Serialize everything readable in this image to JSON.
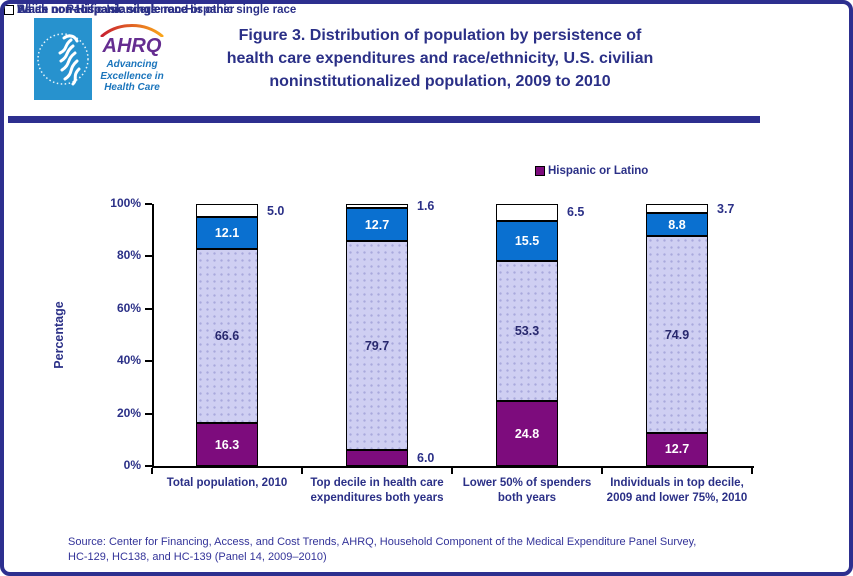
{
  "colors": {
    "border": "#2D2F8F",
    "navy_text": "#2B3087",
    "axis": "#000000",
    "source_text": "#333399",
    "hhs_blue": "#2792CE",
    "ahrq_purple": "#652D90",
    "ahrq_blue": "#1B75BC",
    "lavender_dot": "#A9A9DC"
  },
  "header": {
    "title": "Figure 3. Distribution of population by persistence of\nhealth care expenditures and race/ethnicity, U.S. civilian\nnoninstitutionalized population, 2009 to 2010",
    "logo": {
      "acronym": "AHRQ",
      "tagline": "Advancing\nExcellence in\nHealth Care"
    }
  },
  "chart_data": {
    "type": "bar",
    "stacked": true,
    "title": "Figure 3. Distribution of population by persistence of health care expenditures and race/ethnicity, U.S. civilian noninstitutionalized population, 2009 to 2010",
    "xlabel": "",
    "ylabel": "Percentage",
    "ylim": [
      0,
      100
    ],
    "y_tick_labels": [
      "0%",
      "20%",
      "40%",
      "60%",
      "80%",
      "100%"
    ],
    "grid": false,
    "legend_position": "top",
    "categories": [
      "Total population, 2010",
      "Top decile in health care\nexpenditures both years",
      "Lower 50% of spenders\nboth years",
      "Individuals in top decile,\n2009 and lower 75%, 2010"
    ],
    "series": [
      {
        "name": "Hispanic or Latino",
        "key": "hispanic-or-latino",
        "color": "#7D0C7D",
        "label_color": "#FFFFFF",
        "dotted": false,
        "values": [
          16.3,
          6.0,
          24.8,
          12.7
        ]
      },
      {
        "name": "White non-Hispanic single race or other",
        "key": "white-non-hispanic",
        "color": "#CFCFF2",
        "label_color": "#28286E",
        "dotted": true,
        "values": [
          66.6,
          79.7,
          53.3,
          74.9
        ]
      },
      {
        "name": "Black non-Hispanic single race",
        "key": "black-non-hispanic",
        "color": "#0A70D0",
        "label_color": "#FFFFFF",
        "dotted": false,
        "values": [
          12.1,
          12.7,
          15.5,
          8.8
        ]
      },
      {
        "name": "Asian or Pacific Islanders non-Hispanic single race",
        "key": "asian-pacific-islanders",
        "color": "#FFFFFF",
        "label_color": "#2B3087",
        "dotted": false,
        "values": [
          5.0,
          1.6,
          6.5,
          3.7
        ]
      }
    ]
  },
  "source": "Source: Center for Financing, Access, and Cost Trends, AHRQ,  Household Component of the Medical Expenditure Panel Survey,\nHC-129, HC138, and HC-139 (Panel 14, 2009–2010)"
}
